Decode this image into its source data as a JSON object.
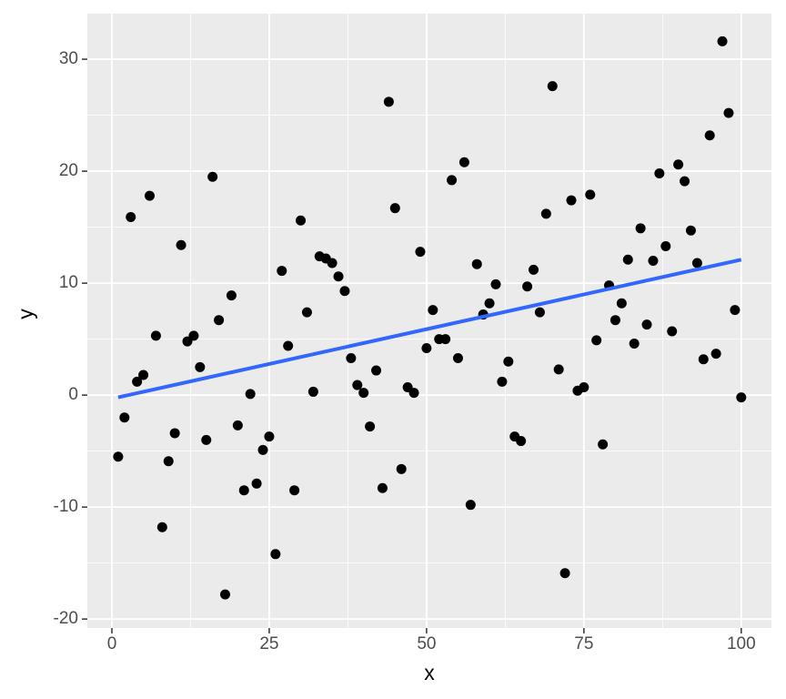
{
  "chart_data": {
    "type": "scatter",
    "x_label": "x",
    "y_label": "y",
    "x": [
      1,
      2,
      3,
      4,
      5,
      6,
      7,
      8,
      9,
      10,
      11,
      12,
      13,
      14,
      15,
      16,
      17,
      18,
      19,
      20,
      21,
      22,
      23,
      24,
      25,
      26,
      27,
      28,
      29,
      30,
      31,
      32,
      33,
      34,
      35,
      36,
      37,
      38,
      39,
      40,
      41,
      42,
      43,
      44,
      45,
      46,
      47,
      48,
      49,
      50,
      51,
      52,
      53,
      54,
      55,
      56,
      57,
      58,
      59,
      60,
      61,
      62,
      63,
      64,
      65,
      66,
      67,
      68,
      69,
      70,
      71,
      72,
      73,
      74,
      75,
      76,
      77,
      78,
      79,
      80,
      81,
      82,
      83,
      84,
      85,
      86,
      87,
      88,
      89,
      90,
      91,
      92,
      93,
      94,
      95,
      96,
      97,
      98,
      99,
      100
    ],
    "values": [
      -5.5,
      -2.0,
      15.9,
      1.2,
      1.8,
      17.8,
      5.3,
      -11.8,
      -5.9,
      -3.4,
      13.4,
      4.8,
      5.3,
      2.5,
      -4.0,
      19.5,
      6.7,
      -17.8,
      8.9,
      -2.7,
      -8.5,
      0.1,
      -7.9,
      -4.9,
      -3.7,
      -14.2,
      11.1,
      4.4,
      -8.5,
      15.6,
      7.4,
      0.3,
      12.4,
      12.2,
      11.8,
      10.6,
      9.3,
      3.3,
      0.9,
      0.2,
      -2.8,
      2.2,
      -8.3,
      26.2,
      16.7,
      -6.6,
      0.7,
      0.2,
      12.8,
      4.2,
      7.6,
      5.0,
      5.0,
      19.2,
      3.3,
      20.8,
      -9.8,
      11.7,
      7.2,
      8.2,
      9.9,
      1.2,
      3.0,
      -3.7,
      -4.1,
      9.7,
      11.2,
      7.4,
      16.2,
      27.6,
      2.3,
      -15.9,
      17.4,
      0.4,
      0.7,
      17.9,
      4.9,
      -4.4,
      9.8,
      6.7,
      8.2,
      12.1,
      4.6,
      14.9,
      6.3,
      12.0,
      19.8,
      13.3,
      5.7,
      20.6,
      19.1,
      14.7,
      11.8,
      3.2,
      23.2,
      3.7,
      31.6,
      25.2,
      7.6,
      -0.2
    ],
    "color": "#000000",
    "trend": {
      "x": [
        1,
        100
      ],
      "values": [
        -0.2,
        12.1
      ],
      "color": "#3366ff"
    },
    "xlim": [
      -3.9,
      104.8
    ],
    "ylim": [
      -20.8,
      34.07
    ],
    "xticks": [
      0,
      25,
      50,
      75,
      100
    ],
    "yticks": [
      -20,
      -10,
      0,
      10,
      20,
      30
    ],
    "xminor": [
      12.5,
      37.5,
      62.5,
      87.5
    ],
    "yminor": [
      -15,
      -5,
      5,
      15,
      25
    ],
    "grid": true
  }
}
